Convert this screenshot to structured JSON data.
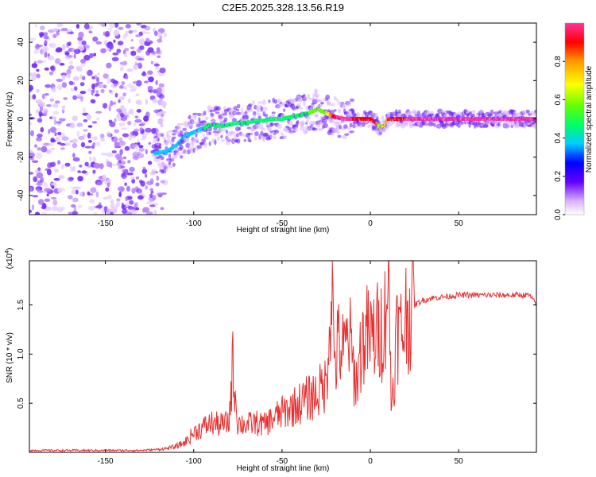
{
  "title": "C2E5.2025.328.13.56.R19",
  "chart_data": [
    {
      "type": "heatmap",
      "name": "spectrogram",
      "xlabel": "Height of straight line (km)",
      "ylabel": "Frequency (Hz)",
      "xlim": [
        -193,
        94
      ],
      "ylim": [
        -50,
        50
      ],
      "xticks": [
        -150,
        -100,
        -50,
        0,
        50
      ],
      "xtick_labels": [
        "-150",
        "-100",
        "-50",
        "0",
        "50"
      ],
      "yticks": [
        40,
        20,
        0,
        -20,
        -40
      ],
      "ytick_labels": [
        "40",
        "20",
        "0",
        "-20",
        "-40"
      ],
      "colorbar": {
        "label": "Normalized spectral amplitude",
        "range": [
          0,
          1
        ],
        "ticks": [
          0.0,
          0.2,
          0.4,
          0.6,
          0.8
        ],
        "tick_labels": [
          "0.0",
          "0.2",
          "0.4",
          "0.6",
          "0.8"
        ],
        "colormap": [
          "#ffffff",
          "#cc99ff",
          "#6600ff",
          "#0000ff",
          "#00ccff",
          "#00ff66",
          "#66ff00",
          "#ffff00",
          "#ff9900",
          "#ff0000",
          "#ff3399"
        ]
      },
      "noise_region": {
        "x_range": [
          -193,
          -120
        ],
        "description_values": "scattered purple noise across full frequency range"
      },
      "ridge": {
        "x": [
          -122,
          -115,
          -110,
          -105,
          -100,
          -95,
          -90,
          -85,
          -80,
          -75,
          -70,
          -65,
          -60,
          -55,
          -50,
          -45,
          -40,
          -35,
          -30,
          -25,
          -20,
          -15,
          -10,
          -5,
          0,
          3,
          5,
          8,
          10,
          20,
          40,
          60,
          80,
          94
        ],
        "y": [
          -18,
          -17,
          -14,
          -9,
          -7,
          -5,
          -3,
          -4,
          -3,
          -2,
          -2,
          -1,
          -1,
          0,
          0,
          1,
          2,
          3,
          5,
          3,
          1,
          0,
          0,
          0,
          0,
          -2,
          -4,
          -3,
          0,
          0,
          0,
          0,
          0,
          0
        ],
        "amplitude": [
          0.35,
          0.35,
          0.38,
          0.4,
          0.42,
          0.45,
          0.45,
          0.45,
          0.45,
          0.45,
          0.45,
          0.45,
          0.45,
          0.5,
          0.5,
          0.55,
          0.5,
          0.55,
          0.6,
          0.65,
          0.95,
          0.95,
          0.95,
          0.9,
          0.85,
          0.85,
          0.6,
          0.7,
          0.9,
          0.95,
          0.95,
          0.95,
          0.95,
          0.95
        ]
      }
    },
    {
      "type": "line",
      "name": "snr",
      "xlabel": "Height of straight line (km)",
      "ylabel": "SNR (10 * v/v)",
      "y_multiplier_label": "(x10",
      "y_multiplier_exponent": "4",
      "y_multiplier_close": ")",
      "xlim": [
        -193,
        94
      ],
      "ylim": [
        0,
        1.95
      ],
      "xticks": [
        -150,
        -100,
        -50,
        0,
        50
      ],
      "xtick_labels": [
        "-150",
        "-100",
        "-50",
        "0",
        "50"
      ],
      "yticks": [
        0.5,
        1.0,
        1.5
      ],
      "ytick_labels": [
        "0.5",
        "1.0",
        "1.5"
      ],
      "series": [
        {
          "name": "SNR",
          "color": "#e83030",
          "x": [
            -193,
            -180,
            -160,
            -140,
            -130,
            -120,
            -115,
            -110,
            -105,
            -100,
            -95,
            -90,
            -85,
            -80,
            -78,
            -75,
            -70,
            -65,
            -60,
            -55,
            -50,
            -45,
            -40,
            -35,
            -30,
            -25,
            -22,
            -20,
            -18,
            -15,
            -12,
            -10,
            -8,
            -5,
            -2,
            0,
            3,
            6,
            8,
            10,
            12,
            15,
            18,
            20,
            25,
            30,
            35,
            40,
            50,
            60,
            70,
            80,
            90,
            94
          ],
          "y": [
            0.02,
            0.02,
            0.02,
            0.02,
            0.02,
            0.03,
            0.04,
            0.06,
            0.1,
            0.2,
            0.25,
            0.3,
            0.28,
            0.3,
            0.9,
            0.3,
            0.28,
            0.3,
            0.28,
            0.35,
            0.4,
            0.45,
            0.5,
            0.55,
            0.6,
            0.7,
            1.75,
            0.9,
            1.1,
            1.0,
            1.2,
            0.9,
            0.7,
            1.1,
            1.2,
            1.15,
            1.2,
            1.25,
            1.3,
            1.9,
            0.45,
            1.25,
            1.2,
            1.4,
            1.5,
            1.55,
            1.57,
            1.58,
            1.6,
            1.6,
            1.6,
            1.6,
            1.6,
            1.5
          ]
        }
      ]
    }
  ]
}
